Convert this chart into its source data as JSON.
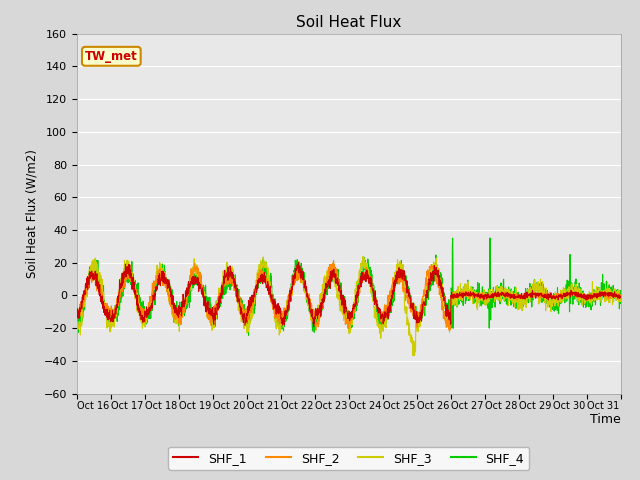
{
  "title": "Soil Heat Flux",
  "ylabel": "Soil Heat Flux (W/m2)",
  "xlabel": "Time",
  "ylim": [
    -60,
    160
  ],
  "yticks": [
    -60,
    -40,
    -20,
    0,
    20,
    40,
    60,
    80,
    100,
    120,
    140,
    160
  ],
  "xtick_labels": [
    "Oct 16",
    "Oct 17",
    "Oct 18",
    "Oct 19",
    "Oct 20",
    "Oct 21",
    "Oct 22",
    "Oct 23",
    "Oct 24",
    "Oct 25",
    "Oct 26",
    "Oct 27",
    "Oct 28",
    "Oct 29",
    "Oct 30",
    "Oct 31"
  ],
  "colors": {
    "SHF_1": "#cc0000",
    "SHF_2": "#ff8800",
    "SHF_3": "#cccc00",
    "SHF_4": "#00cc00"
  },
  "legend_label": "TW_met",
  "legend_box_color": "#ffffcc",
  "legend_box_edge": "#cc8800",
  "plot_bg": "#e8e8e8",
  "fig_bg": "#d8d8d8",
  "grid_color": "#ffffff",
  "figsize": [
    6.4,
    4.8
  ],
  "dpi": 100
}
